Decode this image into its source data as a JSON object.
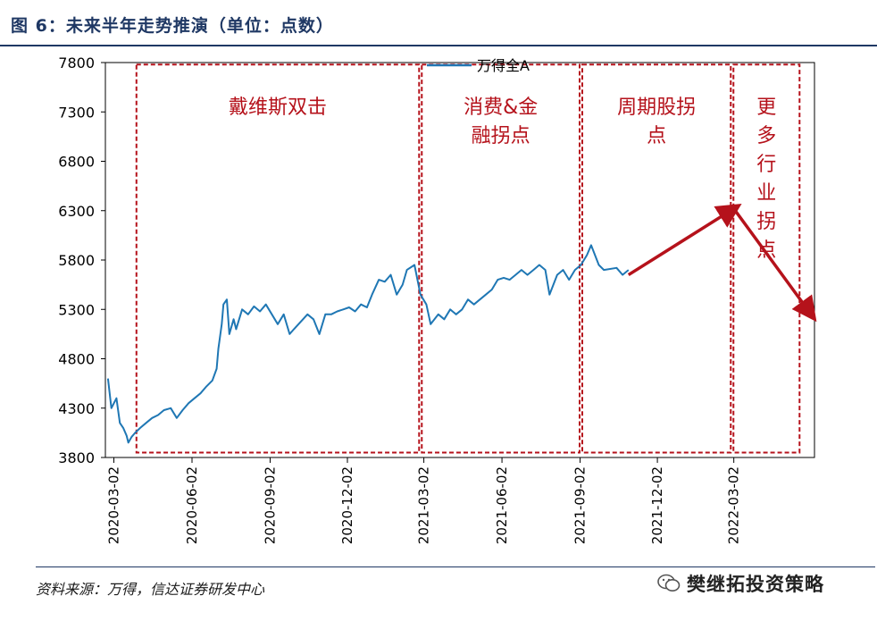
{
  "header": {
    "title": "图 6：未来半年走势推演（单位：点数）"
  },
  "footer": {
    "source": "资料来源：万得，信达证券研发中心",
    "brand": "樊继拓投资策略"
  },
  "chart_data": {
    "type": "line",
    "title": "图 6：未来半年走势推演（单位：点数）",
    "xlabel": "",
    "ylabel": "",
    "ylim": [
      3800,
      7800
    ],
    "yticks": [
      3800,
      4300,
      4800,
      5300,
      5800,
      6300,
      6800,
      7300,
      7800
    ],
    "xticks": [
      "2020-03-02",
      "2020-06-02",
      "2020-09-02",
      "2020-12-02",
      "2021-03-02",
      "2021-06-02",
      "2021-09-02",
      "2021-12-02",
      "2022-03-02"
    ],
    "legend": {
      "position": "top-center",
      "entries": [
        "万得全A"
      ]
    },
    "grid": false,
    "series": [
      {
        "name": "万得全A",
        "color": "#1f77b4",
        "points": [
          [
            "2020-02-24",
            4600
          ],
          [
            "2020-02-28",
            4300
          ],
          [
            "2020-03-05",
            4400
          ],
          [
            "2020-03-09",
            4150
          ],
          [
            "2020-03-13",
            4100
          ],
          [
            "2020-03-17",
            4020
          ],
          [
            "2020-03-19",
            3950
          ],
          [
            "2020-03-23",
            4010
          ],
          [
            "2020-03-27",
            4050
          ],
          [
            "2020-04-02",
            4100
          ],
          [
            "2020-04-09",
            4150
          ],
          [
            "2020-04-16",
            4200
          ],
          [
            "2020-04-23",
            4230
          ],
          [
            "2020-04-30",
            4280
          ],
          [
            "2020-05-08",
            4300
          ],
          [
            "2020-05-15",
            4200
          ],
          [
            "2020-05-22",
            4280
          ],
          [
            "2020-05-29",
            4350
          ],
          [
            "2020-06-05",
            4400
          ],
          [
            "2020-06-12",
            4450
          ],
          [
            "2020-06-19",
            4520
          ],
          [
            "2020-06-26",
            4580
          ],
          [
            "2020-07-01",
            4700
          ],
          [
            "2020-07-03",
            4900
          ],
          [
            "2020-07-07",
            5150
          ],
          [
            "2020-07-09",
            5350
          ],
          [
            "2020-07-13",
            5400
          ],
          [
            "2020-07-16",
            5050
          ],
          [
            "2020-07-21",
            5200
          ],
          [
            "2020-07-24",
            5100
          ],
          [
            "2020-07-31",
            5300
          ],
          [
            "2020-08-07",
            5250
          ],
          [
            "2020-08-14",
            5330
          ],
          [
            "2020-08-21",
            5280
          ],
          [
            "2020-08-28",
            5350
          ],
          [
            "2020-09-04",
            5250
          ],
          [
            "2020-09-11",
            5150
          ],
          [
            "2020-09-18",
            5250
          ],
          [
            "2020-09-25",
            5050
          ],
          [
            "2020-09-30",
            5100
          ],
          [
            "2020-10-16",
            5250
          ],
          [
            "2020-10-23",
            5200
          ],
          [
            "2020-10-30",
            5050
          ],
          [
            "2020-11-06",
            5250
          ],
          [
            "2020-11-13",
            5250
          ],
          [
            "2020-11-20",
            5280
          ],
          [
            "2020-11-27",
            5300
          ],
          [
            "2020-12-04",
            5320
          ],
          [
            "2020-12-11",
            5280
          ],
          [
            "2020-12-18",
            5350
          ],
          [
            "2020-12-25",
            5320
          ],
          [
            "2020-12-31",
            5450
          ],
          [
            "2021-01-08",
            5600
          ],
          [
            "2021-01-15",
            5580
          ],
          [
            "2021-01-22",
            5650
          ],
          [
            "2021-01-29",
            5450
          ],
          [
            "2021-02-05",
            5550
          ],
          [
            "2021-02-10",
            5700
          ],
          [
            "2021-02-19",
            5750
          ],
          [
            "2021-02-26",
            5450
          ],
          [
            "2021-03-05",
            5350
          ],
          [
            "2021-03-10",
            5150
          ],
          [
            "2021-03-19",
            5250
          ],
          [
            "2021-03-26",
            5200
          ],
          [
            "2021-04-02",
            5300
          ],
          [
            "2021-04-09",
            5250
          ],
          [
            "2021-04-16",
            5300
          ],
          [
            "2021-04-23",
            5400
          ],
          [
            "2021-04-30",
            5350
          ],
          [
            "2021-05-14",
            5450
          ],
          [
            "2021-05-21",
            5500
          ],
          [
            "2021-05-28",
            5600
          ],
          [
            "2021-06-04",
            5620
          ],
          [
            "2021-06-11",
            5600
          ],
          [
            "2021-06-18",
            5650
          ],
          [
            "2021-06-25",
            5700
          ],
          [
            "2021-07-02",
            5650
          ],
          [
            "2021-07-09",
            5700
          ],
          [
            "2021-07-16",
            5750
          ],
          [
            "2021-07-23",
            5700
          ],
          [
            "2021-07-28",
            5450
          ],
          [
            "2021-08-06",
            5650
          ],
          [
            "2021-08-13",
            5700
          ],
          [
            "2021-08-20",
            5600
          ],
          [
            "2021-08-27",
            5700
          ],
          [
            "2021-09-03",
            5750
          ],
          [
            "2021-09-10",
            5850
          ],
          [
            "2021-09-15",
            5950
          ],
          [
            "2021-09-24",
            5750
          ],
          [
            "2021-09-30",
            5700
          ],
          [
            "2021-10-15",
            5720
          ],
          [
            "2021-10-22",
            5650
          ],
          [
            "2021-10-29",
            5700
          ]
        ]
      }
    ],
    "projection": [
      {
        "from": [
          "2021-10-29",
          5650
        ],
        "to": [
          "2022-03-02",
          6320
        ]
      },
      {
        "from": [
          "2022-03-02",
          6320
        ],
        "to": [
          "2022-06-01",
          5250
        ]
      }
    ],
    "regions": [
      {
        "label": "戴维斯双击",
        "start": "2020-03-27",
        "end": "2021-02-26"
      },
      {
        "label": "消费&金融拐点",
        "start": "2021-02-26",
        "end": "2021-09-03"
      },
      {
        "label": "周期股拐点",
        "start": "2021-09-03",
        "end": "2022-02-28"
      },
      {
        "label": "更多行业拐点",
        "start": "2022-02-28",
        "end": "2022-05-20"
      }
    ],
    "colors": {
      "line": "#1f77b4",
      "region_border": "#b5121b",
      "region_text": "#b5121b",
      "arrow": "#b5121b",
      "title": "#1f3864"
    }
  }
}
